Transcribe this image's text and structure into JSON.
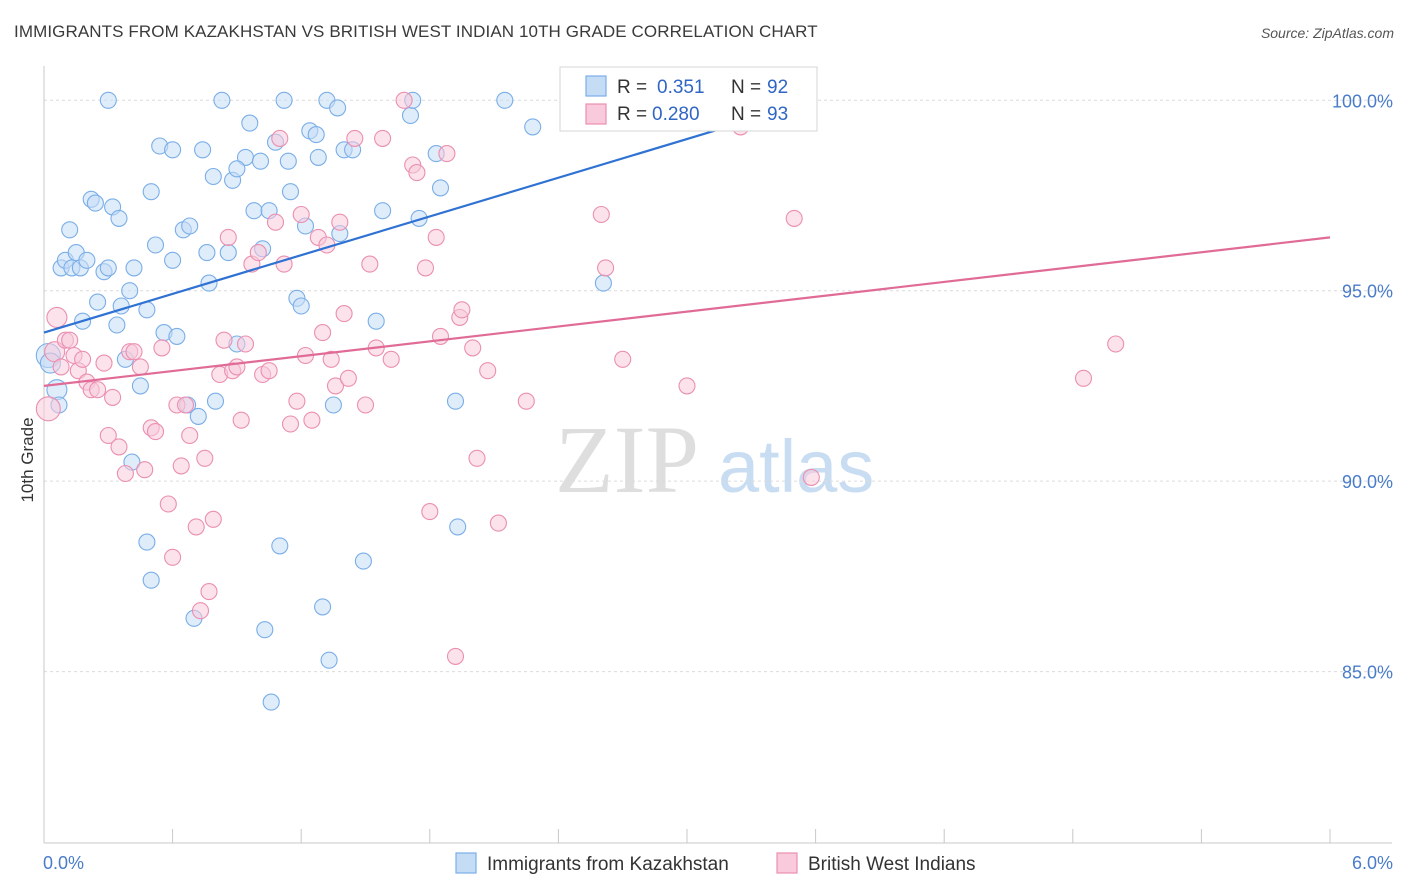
{
  "title": "IMMIGRANTS FROM KAZAKHSTAN VS BRITISH WEST INDIAN 10TH GRADE CORRELATION CHART",
  "source": "Source: ZipAtlas.com",
  "watermark": {
    "zip": "ZIP",
    "atlas": "atlas"
  },
  "legend": {
    "rows": [
      {
        "r_label": "R =",
        "r_value": "0.351",
        "n_label": "N =",
        "n_value": "92"
      },
      {
        "r_label": "R =",
        "r_value": "0.280",
        "n_label": "N =",
        "n_value": "93"
      }
    ]
  },
  "bottom_legend": [
    "Immigrants from Kazakhstan",
    "British West Indians"
  ],
  "chart_data": {
    "type": "scatter",
    "title": "IMMIGRANTS FROM KAZAKHSTAN VS BRITISH WEST INDIAN 10TH GRADE CORRELATION CHART",
    "xlabel": "",
    "ylabel": "10th Grade",
    "xlim": [
      0,
      6
    ],
    "ylim": [
      80.5,
      100.9
    ],
    "x_tick_labels": [
      "0.0%",
      "6.0%"
    ],
    "y_ticks": [
      85,
      90,
      95,
      100
    ],
    "y_tick_labels": [
      "85.0%",
      "90.0%",
      "95.0%",
      "100.0%"
    ],
    "grid": true,
    "legend_position": "top-center",
    "series": [
      {
        "name": "Immigrants from Kazakhstan",
        "color": "#7aaee8",
        "fill": "#c5dcf5",
        "r": 0.351,
        "n": 92,
        "trend": {
          "x": [
            0.0,
            3.6
          ],
          "y": [
            93.9,
            100.0
          ]
        },
        "points": [
          [
            0.02,
            93.3
          ],
          [
            0.03,
            93.1
          ],
          [
            0.06,
            92.4
          ],
          [
            0.07,
            92.0
          ],
          [
            0.08,
            95.6
          ],
          [
            0.1,
            95.8
          ],
          [
            0.12,
            96.6
          ],
          [
            0.13,
            95.6
          ],
          [
            0.15,
            96.0
          ],
          [
            0.17,
            95.6
          ],
          [
            0.18,
            94.2
          ],
          [
            0.2,
            95.8
          ],
          [
            0.22,
            97.4
          ],
          [
            0.24,
            97.3
          ],
          [
            0.25,
            94.7
          ],
          [
            0.28,
            95.5
          ],
          [
            0.3,
            95.6
          ],
          [
            0.32,
            97.2
          ],
          [
            0.34,
            94.1
          ],
          [
            0.36,
            94.6
          ],
          [
            0.38,
            93.2
          ],
          [
            0.4,
            95.0
          ],
          [
            0.42,
            95.6
          ],
          [
            0.45,
            92.5
          ],
          [
            0.48,
            94.5
          ],
          [
            0.5,
            97.6
          ],
          [
            0.52,
            96.2
          ],
          [
            0.54,
            98.8
          ],
          [
            0.56,
            93.9
          ],
          [
            0.6,
            98.7
          ],
          [
            0.6,
            95.8
          ],
          [
            0.62,
            93.8
          ],
          [
            0.65,
            96.6
          ],
          [
            0.67,
            92.0
          ],
          [
            0.68,
            96.7
          ],
          [
            0.7,
            86.4
          ],
          [
            0.72,
            91.7
          ],
          [
            0.74,
            98.7
          ],
          [
            0.76,
            96.0
          ],
          [
            0.77,
            95.2
          ],
          [
            0.79,
            98.0
          ],
          [
            0.8,
            92.1
          ],
          [
            0.83,
            100.0
          ],
          [
            0.86,
            96.0
          ],
          [
            0.88,
            97.9
          ],
          [
            0.9,
            93.6
          ],
          [
            0.94,
            98.5
          ],
          [
            0.96,
            99.4
          ],
          [
            0.98,
            97.1
          ],
          [
            1.01,
            98.4
          ],
          [
            1.02,
            96.1
          ],
          [
            1.03,
            86.1
          ],
          [
            1.05,
            97.1
          ],
          [
            1.06,
            84.2
          ],
          [
            1.08,
            98.9
          ],
          [
            1.1,
            88.3
          ],
          [
            1.12,
            100.0
          ],
          [
            1.14,
            98.4
          ],
          [
            1.18,
            94.8
          ],
          [
            1.2,
            94.6
          ],
          [
            1.22,
            96.7
          ],
          [
            1.24,
            99.2
          ],
          [
            1.27,
            99.1
          ],
          [
            1.28,
            98.5
          ],
          [
            1.3,
            86.7
          ],
          [
            1.32,
            100.0
          ],
          [
            1.33,
            85.3
          ],
          [
            1.35,
            92.0
          ],
          [
            1.37,
            99.8
          ],
          [
            1.38,
            96.5
          ],
          [
            1.4,
            98.7
          ],
          [
            1.44,
            98.7
          ],
          [
            1.49,
            87.9
          ],
          [
            1.55,
            94.2
          ],
          [
            1.58,
            97.1
          ],
          [
            1.71,
            99.6
          ],
          [
            1.72,
            100.0
          ],
          [
            1.75,
            96.9
          ],
          [
            1.83,
            98.6
          ],
          [
            1.85,
            97.7
          ],
          [
            1.92,
            92.1
          ],
          [
            2.15,
            100.0
          ],
          [
            2.28,
            99.3
          ],
          [
            2.61,
            95.2
          ],
          [
            0.48,
            88.4
          ],
          [
            0.5,
            87.4
          ],
          [
            0.41,
            90.5
          ],
          [
            0.3,
            100.0
          ],
          [
            1.93,
            88.8
          ],
          [
            0.9,
            98.2
          ],
          [
            1.15,
            97.6
          ],
          [
            0.35,
            96.9
          ]
        ]
      },
      {
        "name": "British West Indians",
        "color": "#eb8fb0",
        "fill": "#f8cadb",
        "r": 0.28,
        "n": 93,
        "trend": {
          "x": [
            0.0,
            6.0
          ],
          "y": [
            92.5,
            96.4
          ]
        },
        "points": [
          [
            0.02,
            91.9
          ],
          [
            0.05,
            93.4
          ],
          [
            0.06,
            94.3
          ],
          [
            0.08,
            93.0
          ],
          [
            0.1,
            93.7
          ],
          [
            0.12,
            93.7
          ],
          [
            0.14,
            93.3
          ],
          [
            0.16,
            92.9
          ],
          [
            0.18,
            93.2
          ],
          [
            0.2,
            92.6
          ],
          [
            0.22,
            92.4
          ],
          [
            0.25,
            92.4
          ],
          [
            0.28,
            93.1
          ],
          [
            0.3,
            91.2
          ],
          [
            0.32,
            92.2
          ],
          [
            0.35,
            90.9
          ],
          [
            0.38,
            90.2
          ],
          [
            0.4,
            93.4
          ],
          [
            0.42,
            93.4
          ],
          [
            0.45,
            93.0
          ],
          [
            0.47,
            90.3
          ],
          [
            0.5,
            91.4
          ],
          [
            0.52,
            91.3
          ],
          [
            0.55,
            93.5
          ],
          [
            0.58,
            89.4
          ],
          [
            0.6,
            88.0
          ],
          [
            0.62,
            92.0
          ],
          [
            0.64,
            90.4
          ],
          [
            0.66,
            92.0
          ],
          [
            0.68,
            91.2
          ],
          [
            0.71,
            88.8
          ],
          [
            0.73,
            86.6
          ],
          [
            0.75,
            90.6
          ],
          [
            0.77,
            87.1
          ],
          [
            0.79,
            89.0
          ],
          [
            0.82,
            92.8
          ],
          [
            0.84,
            93.7
          ],
          [
            0.86,
            96.4
          ],
          [
            0.88,
            92.9
          ],
          [
            0.9,
            93.0
          ],
          [
            0.92,
            91.6
          ],
          [
            0.94,
            93.6
          ],
          [
            0.97,
            95.7
          ],
          [
            1.0,
            96.0
          ],
          [
            1.02,
            92.8
          ],
          [
            1.05,
            92.9
          ],
          [
            1.08,
            96.8
          ],
          [
            1.1,
            99.0
          ],
          [
            1.12,
            95.7
          ],
          [
            1.15,
            91.5
          ],
          [
            1.18,
            92.1
          ],
          [
            1.2,
            97.0
          ],
          [
            1.22,
            93.3
          ],
          [
            1.25,
            91.6
          ],
          [
            1.28,
            96.4
          ],
          [
            1.3,
            93.9
          ],
          [
            1.32,
            96.2
          ],
          [
            1.34,
            93.2
          ],
          [
            1.36,
            92.5
          ],
          [
            1.38,
            96.8
          ],
          [
            1.4,
            94.4
          ],
          [
            1.42,
            92.7
          ],
          [
            1.45,
            99.0
          ],
          [
            1.5,
            92.0
          ],
          [
            1.52,
            95.7
          ],
          [
            1.55,
            93.5
          ],
          [
            1.58,
            99.0
          ],
          [
            1.62,
            93.2
          ],
          [
            1.68,
            100.0
          ],
          [
            1.72,
            98.3
          ],
          [
            1.74,
            98.1
          ],
          [
            1.78,
            95.6
          ],
          [
            1.8,
            89.2
          ],
          [
            1.83,
            96.4
          ],
          [
            1.85,
            93.8
          ],
          [
            1.88,
            98.6
          ],
          [
            1.92,
            85.4
          ],
          [
            1.94,
            94.3
          ],
          [
            1.95,
            94.5
          ],
          [
            2.0,
            93.5
          ],
          [
            2.02,
            90.6
          ],
          [
            2.07,
            92.9
          ],
          [
            2.12,
            88.9
          ],
          [
            2.25,
            92.1
          ],
          [
            2.6,
            97.0
          ],
          [
            2.62,
            95.6
          ],
          [
            2.7,
            93.2
          ],
          [
            3.0,
            92.5
          ],
          [
            3.25,
            99.3
          ],
          [
            3.5,
            96.9
          ],
          [
            3.58,
            90.1
          ],
          [
            4.85,
            92.7
          ],
          [
            5.0,
            93.6
          ]
        ]
      }
    ]
  }
}
